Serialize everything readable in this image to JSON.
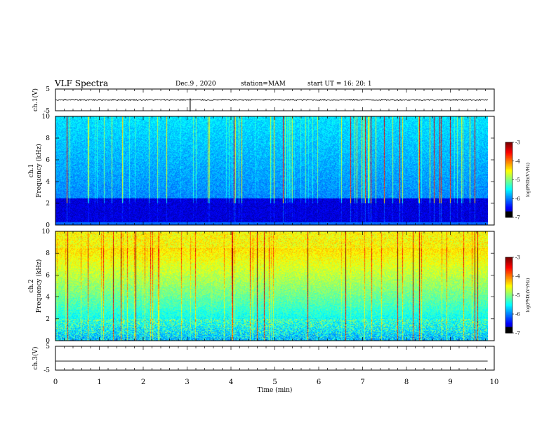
{
  "header": {
    "title": "VLF Spectra",
    "date": "Dec.9 , 2020",
    "station": "station=MAM",
    "start": "start UT = 16: 20: 1"
  },
  "colors": {
    "frame": "#000000",
    "trace": "#000000"
  },
  "chart_data": [
    {
      "type": "line",
      "ylabel": "ch.1(V)",
      "ylim": [
        -5,
        5
      ],
      "yticks": [
        "5",
        "-5"
      ],
      "xlim": [
        0,
        10
      ],
      "x": [
        0,
        9.85
      ],
      "y": [
        0,
        0
      ],
      "note_values": "noisy trace near 0 V with a brief spike near 3.1 min"
    },
    {
      "type": "heatmap",
      "ylabel": "ch.1 Frequency (kHz)",
      "ylim": [
        0,
        10
      ],
      "yticks": [
        "0",
        "2",
        "4",
        "6",
        "8",
        "10"
      ],
      "xlim": [
        0,
        10
      ],
      "colorbar": {
        "label": "log(PSD)(V²/Hz)",
        "ticks": [
          "-3",
          "-4",
          "-5",
          "-6",
          "-7"
        ],
        "range": [
          -7,
          -3
        ]
      }
    },
    {
      "type": "heatmap",
      "ylabel": "ch.2 Frequency (kHz)",
      "ylim": [
        0,
        10
      ],
      "yticks": [
        "0",
        "2",
        "4",
        "6",
        "8",
        "10"
      ],
      "xlim": [
        0,
        10
      ],
      "colorbar": {
        "label": "log(PSD)(V²/Hz)",
        "ticks": [
          "-3",
          "-4",
          "-5",
          "-6",
          "-7"
        ],
        "range": [
          -7,
          -3
        ]
      }
    },
    {
      "type": "line",
      "ylabel": "ch.3(V)",
      "ylim": [
        -5,
        5
      ],
      "yticks": [
        "5",
        "-5"
      ],
      "xlim": [
        0,
        10
      ],
      "xticks": [
        "0",
        "1",
        "2",
        "3",
        "4",
        "5",
        "6",
        "7",
        "8",
        "9",
        "10"
      ],
      "xlabel": "Time (min)",
      "x": [
        0,
        9.85
      ],
      "y": [
        -1.2,
        -1.2
      ]
    }
  ]
}
